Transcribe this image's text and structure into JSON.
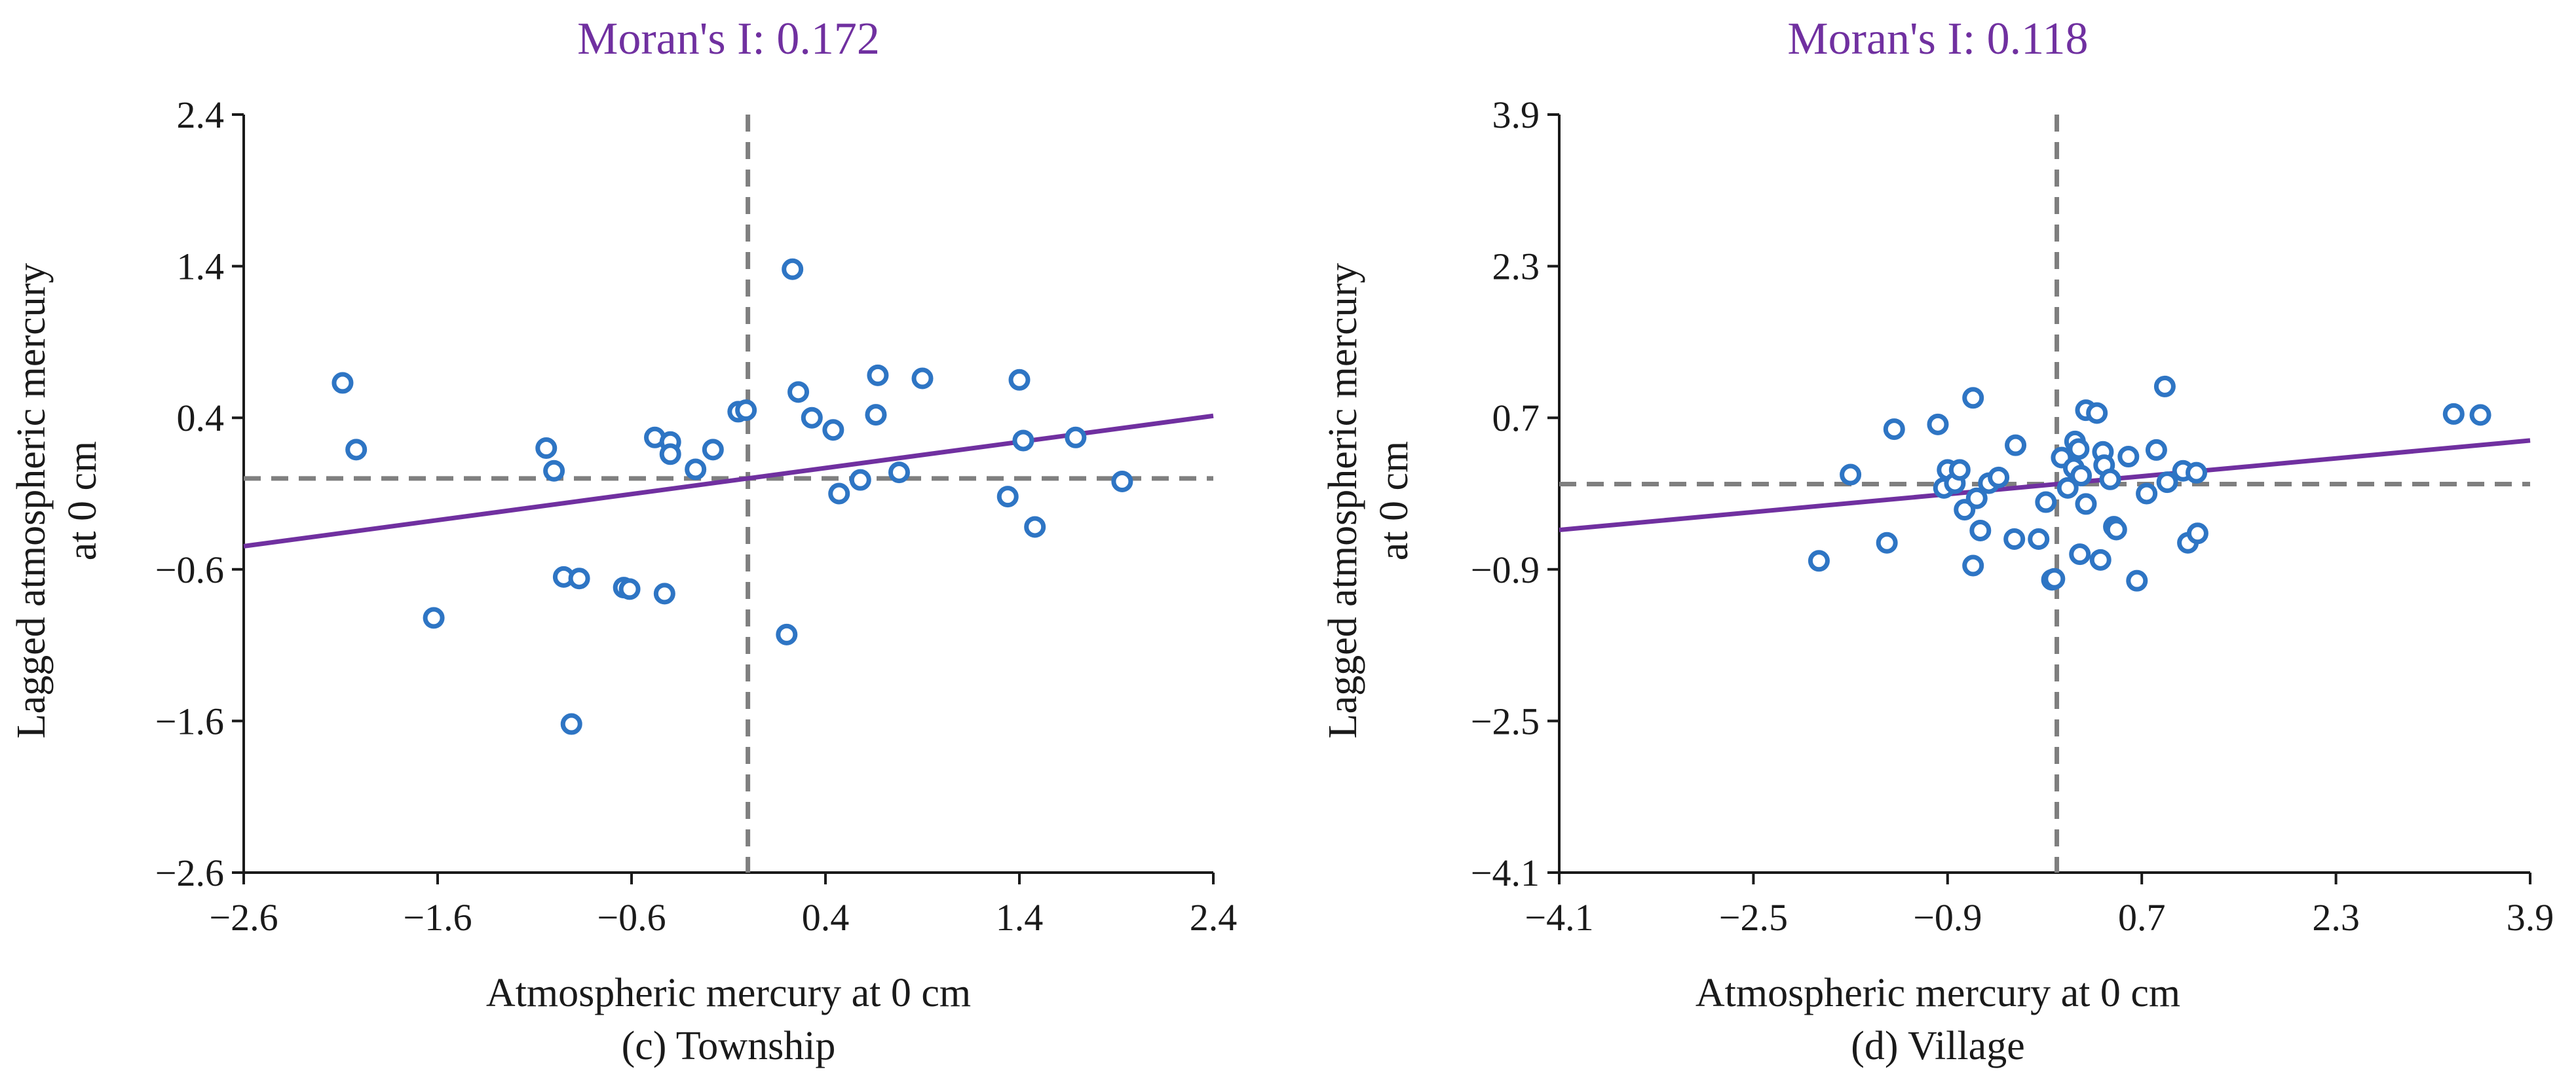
{
  "chart_data": [
    {
      "type": "scatter",
      "title": "Moran's I: 0.172",
      "caption": "(c) Township",
      "xlabel": "Atmospheric mercury at 0 cm",
      "ylabel_lines": [
        "Lagged atmospheric mercury",
        "at 0 cm"
      ],
      "xlim": [
        -2.6,
        2.4
      ],
      "ylim": [
        -2.6,
        2.4
      ],
      "xticks": [
        -2.6,
        -1.6,
        -0.6,
        0.4,
        1.4,
        2.4
      ],
      "yticks": [
        -2.6,
        -1.6,
        -0.6,
        0.4,
        1.4,
        2.4
      ],
      "xtick_labels": [
        "−2.6",
        "−1.6",
        "−0.6",
        "0.4",
        "1.4",
        "2.4"
      ],
      "ytick_labels": [
        "−2.6",
        "−1.6",
        "−0.6",
        "0.4",
        "1.4",
        "2.4"
      ],
      "reference_lines": {
        "x": 0.0,
        "y": 0.0
      },
      "fit_line": {
        "slope": 0.172,
        "intercept": 0.0
      },
      "colors": {
        "points": "#2e75c4",
        "fit": "#7030a0",
        "reference": "#7f7f7f",
        "title": "#7030a0"
      },
      "points": [
        [
          -2.09,
          0.63
        ],
        [
          -2.02,
          0.19
        ],
        [
          -1.62,
          -0.92
        ],
        [
          -1.04,
          0.2
        ],
        [
          -1.0,
          0.05
        ],
        [
          -0.95,
          -0.65
        ],
        [
          -0.91,
          -1.62
        ],
        [
          -0.87,
          -0.66
        ],
        [
          -0.64,
          -0.72
        ],
        [
          -0.61,
          -0.73
        ],
        [
          -0.48,
          0.27
        ],
        [
          -0.43,
          -0.76
        ],
        [
          -0.4,
          0.24
        ],
        [
          -0.4,
          0.16
        ],
        [
          -0.27,
          0.06
        ],
        [
          -0.18,
          0.19
        ],
        [
          -0.05,
          0.44
        ],
        [
          -0.01,
          0.45
        ],
        [
          0.2,
          -1.03
        ],
        [
          0.23,
          1.38
        ],
        [
          0.26,
          0.57
        ],
        [
          0.33,
          0.4
        ],
        [
          0.44,
          0.32
        ],
        [
          0.47,
          -0.1
        ],
        [
          0.58,
          -0.01
        ],
        [
          0.66,
          0.42
        ],
        [
          0.67,
          0.68
        ],
        [
          0.78,
          0.04
        ],
        [
          0.9,
          0.66
        ],
        [
          1.34,
          -0.12
        ],
        [
          1.4,
          0.65
        ],
        [
          1.42,
          0.25
        ],
        [
          1.48,
          -0.32
        ],
        [
          1.69,
          0.27
        ],
        [
          1.93,
          -0.02
        ]
      ]
    },
    {
      "type": "scatter",
      "title": "Moran's I: 0.118",
      "caption": "(d) Village",
      "xlabel": "Atmospheric mercury at 0 cm",
      "ylabel_lines": [
        "Lagged atmospheric mercury",
        "at 0 cm"
      ],
      "xlim": [
        -4.1,
        3.9
      ],
      "ylim": [
        -4.1,
        3.9
      ],
      "xticks": [
        -4.1,
        -2.5,
        -0.9,
        0.7,
        2.3,
        3.9
      ],
      "yticks": [
        -4.1,
        -2.5,
        -0.9,
        0.7,
        2.3,
        3.9
      ],
      "xtick_labels": [
        "−4.1",
        "−2.5",
        "−0.9",
        "0.7",
        "2.3",
        "3.9"
      ],
      "ytick_labels": [
        "−4.1",
        "−2.5",
        "−0.9",
        "0.7",
        "2.3",
        "3.9"
      ],
      "reference_lines": {
        "x": 0.0,
        "y": 0.0
      },
      "fit_line": {
        "slope": 0.118,
        "intercept": 0.0
      },
      "colors": {
        "points": "#2e75c4",
        "fit": "#7030a0",
        "reference": "#7f7f7f",
        "title": "#7030a0"
      },
      "points": [
        [
          -1.96,
          -0.81
        ],
        [
          -1.7,
          0.1
        ],
        [
          -1.4,
          -0.62
        ],
        [
          -1.34,
          0.58
        ],
        [
          -0.98,
          0.63
        ],
        [
          -0.93,
          -0.04
        ],
        [
          -0.9,
          0.15
        ],
        [
          -0.84,
          0.01
        ],
        [
          -0.8,
          0.15
        ],
        [
          -0.76,
          -0.27
        ],
        [
          -0.69,
          -0.86
        ],
        [
          -0.69,
          0.91
        ],
        [
          -0.66,
          -0.15
        ],
        [
          -0.63,
          -0.49
        ],
        [
          -0.56,
          0.01
        ],
        [
          -0.48,
          0.07
        ],
        [
          -0.35,
          -0.58
        ],
        [
          -0.34,
          0.41
        ],
        [
          -0.15,
          -0.58
        ],
        [
          -0.09,
          -0.19
        ],
        [
          -0.04,
          -1.01
        ],
        [
          -0.02,
          -1.0
        ],
        [
          0.04,
          0.28
        ],
        [
          0.09,
          -0.04
        ],
        [
          0.14,
          0.17
        ],
        [
          0.15,
          0.45
        ],
        [
          0.18,
          0.37
        ],
        [
          0.19,
          -0.74
        ],
        [
          0.2,
          0.09
        ],
        [
          0.24,
          -0.21
        ],
        [
          0.24,
          0.78
        ],
        [
          0.33,
          0.75
        ],
        [
          0.36,
          -0.8
        ],
        [
          0.38,
          0.34
        ],
        [
          0.39,
          0.2
        ],
        [
          0.44,
          0.05
        ],
        [
          0.47,
          -0.45
        ],
        [
          0.49,
          -0.48
        ],
        [
          0.59,
          0.29
        ],
        [
          0.66,
          -1.02
        ],
        [
          0.74,
          -0.1
        ],
        [
          0.82,
          0.36
        ],
        [
          0.89,
          1.03
        ],
        [
          0.91,
          0.02
        ],
        [
          1.04,
          0.14
        ],
        [
          1.08,
          -0.62
        ],
        [
          1.15,
          0.12
        ],
        [
          1.16,
          -0.52
        ],
        [
          3.27,
          0.74
        ],
        [
          3.49,
          0.73
        ]
      ]
    }
  ]
}
